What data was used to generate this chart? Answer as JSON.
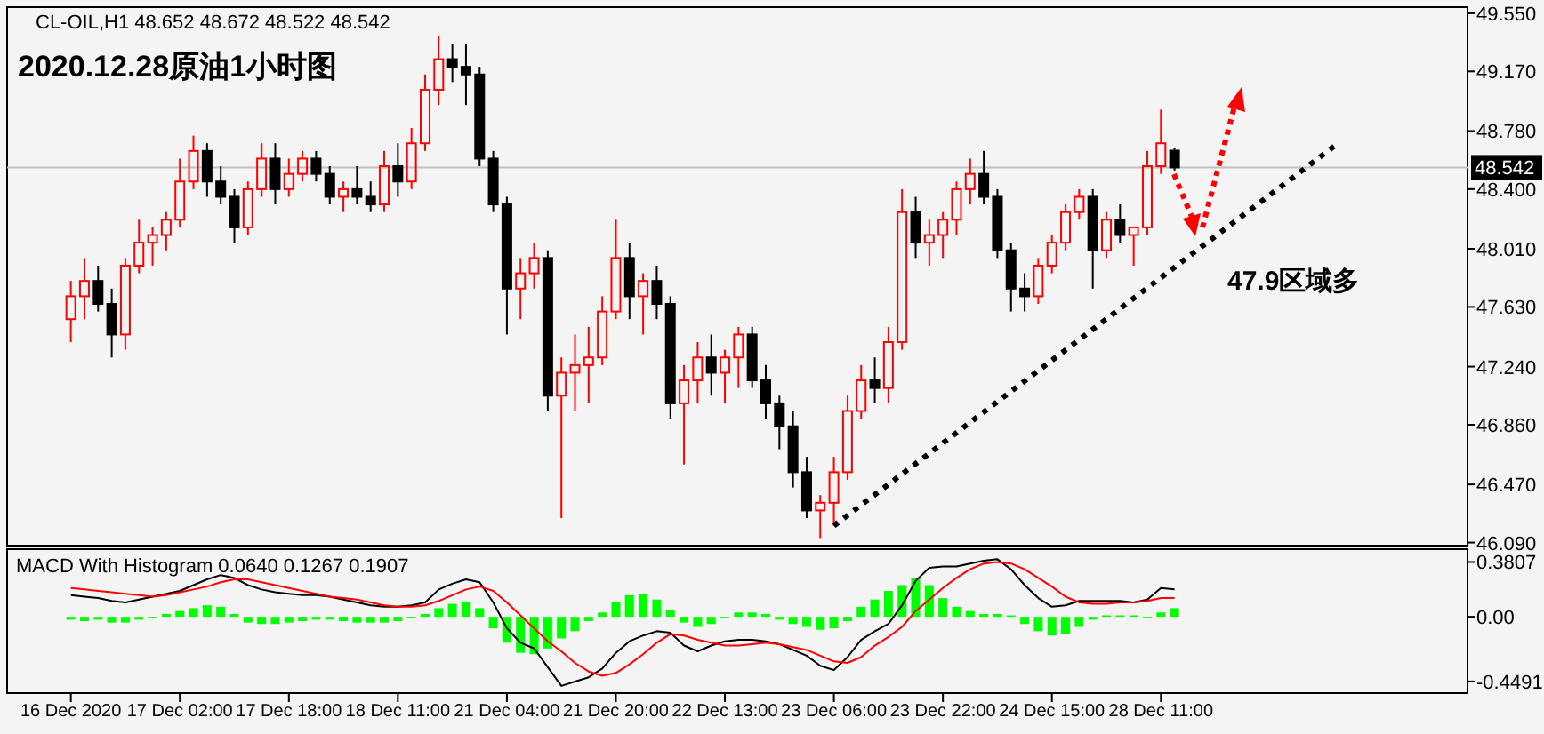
{
  "chart_data": [
    {
      "type": "candlestick",
      "title": "2020.12.28原油1小时图",
      "subtitle": "CL-OIL,H1  48.652 48.672 48.522 48.542",
      "annotations": [
        "47.9区域多"
      ],
      "tick_labels": "y",
      "ohlc": [
        [
          47.55,
          47.8,
          47.4,
          47.7
        ],
        [
          47.7,
          47.95,
          47.55,
          47.8
        ],
        [
          47.8,
          47.9,
          47.6,
          47.65
        ],
        [
          47.65,
          47.75,
          47.3,
          47.45
        ],
        [
          47.45,
          47.95,
          47.35,
          47.9
        ],
        [
          47.9,
          48.2,
          47.85,
          48.05
        ],
        [
          48.05,
          48.15,
          47.9,
          48.1
        ],
        [
          48.1,
          48.25,
          48.0,
          48.2
        ],
        [
          48.2,
          48.6,
          48.15,
          48.45
        ],
        [
          48.45,
          48.75,
          48.4,
          48.65
        ],
        [
          48.65,
          48.7,
          48.35,
          48.45
        ],
        [
          48.45,
          48.55,
          48.3,
          48.35
        ],
        [
          48.35,
          48.4,
          48.05,
          48.15
        ],
        [
          48.15,
          48.45,
          48.1,
          48.4
        ],
        [
          48.4,
          48.7,
          48.35,
          48.6
        ],
        [
          48.6,
          48.7,
          48.3,
          48.4
        ],
        [
          48.4,
          48.6,
          48.35,
          48.5
        ],
        [
          48.5,
          48.65,
          48.45,
          48.6
        ],
        [
          48.6,
          48.65,
          48.45,
          48.5
        ],
        [
          48.5,
          48.55,
          48.3,
          48.35
        ],
        [
          48.35,
          48.45,
          48.25,
          48.4
        ],
        [
          48.4,
          48.55,
          48.3,
          48.35
        ],
        [
          48.35,
          48.45,
          48.25,
          48.3
        ],
        [
          48.3,
          48.65,
          48.25,
          48.55
        ],
        [
          48.55,
          48.7,
          48.35,
          48.45
        ],
        [
          48.45,
          48.8,
          48.4,
          48.7
        ],
        [
          48.7,
          49.15,
          48.65,
          49.05
        ],
        [
          49.05,
          49.4,
          48.95,
          49.25
        ],
        [
          49.25,
          49.35,
          49.1,
          49.2
        ],
        [
          49.2,
          49.35,
          48.95,
          49.15
        ],
        [
          49.15,
          49.2,
          48.55,
          48.6
        ],
        [
          48.6,
          48.65,
          48.25,
          48.3
        ],
        [
          48.3,
          48.35,
          47.45,
          47.75
        ],
        [
          47.75,
          47.95,
          47.55,
          47.85
        ],
        [
          47.85,
          48.05,
          47.75,
          47.95
        ],
        [
          47.95,
          48.0,
          46.95,
          47.05
        ],
        [
          47.05,
          47.3,
          46.25,
          47.2
        ],
        [
          47.2,
          47.45,
          46.95,
          47.25
        ],
        [
          47.25,
          47.5,
          47.0,
          47.3
        ],
        [
          47.3,
          47.7,
          47.25,
          47.6
        ],
        [
          47.6,
          48.2,
          47.55,
          47.95
        ],
        [
          47.95,
          48.05,
          47.55,
          47.7
        ],
        [
          47.7,
          47.85,
          47.45,
          47.8
        ],
        [
          47.8,
          47.9,
          47.55,
          47.65
        ],
        [
          47.65,
          47.7,
          46.9,
          47.0
        ],
        [
          47.0,
          47.25,
          46.6,
          47.15
        ],
        [
          47.15,
          47.4,
          47.0,
          47.3
        ],
        [
          47.3,
          47.45,
          47.05,
          47.2
        ],
        [
          47.2,
          47.35,
          47.0,
          47.3
        ],
        [
          47.3,
          47.5,
          47.1,
          47.45
        ],
        [
          47.45,
          47.5,
          47.1,
          47.15
        ],
        [
          47.15,
          47.25,
          46.9,
          47.0
        ],
        [
          47.0,
          47.05,
          46.7,
          46.85
        ],
        [
          46.85,
          46.95,
          46.45,
          46.55
        ],
        [
          46.55,
          46.65,
          46.25,
          46.3
        ],
        [
          46.3,
          46.4,
          46.12,
          46.35
        ],
        [
          46.35,
          46.65,
          46.2,
          46.55
        ],
        [
          46.55,
          47.05,
          46.5,
          46.95
        ],
        [
          46.95,
          47.25,
          46.9,
          47.15
        ],
        [
          47.15,
          47.3,
          47.0,
          47.1
        ],
        [
          47.1,
          47.5,
          47.0,
          47.4
        ],
        [
          47.4,
          48.4,
          47.35,
          48.25
        ],
        [
          48.25,
          48.35,
          47.95,
          48.05
        ],
        [
          48.05,
          48.2,
          47.9,
          48.1
        ],
        [
          48.1,
          48.25,
          47.95,
          48.2
        ],
        [
          48.2,
          48.45,
          48.1,
          48.4
        ],
        [
          48.4,
          48.6,
          48.3,
          48.5
        ],
        [
          48.5,
          48.65,
          48.3,
          48.35
        ],
        [
          48.35,
          48.4,
          47.95,
          48.0
        ],
        [
          48.0,
          48.05,
          47.6,
          47.75
        ],
        [
          47.75,
          47.85,
          47.6,
          47.7
        ],
        [
          47.7,
          47.95,
          47.65,
          47.9
        ],
        [
          47.9,
          48.1,
          47.85,
          48.05
        ],
        [
          48.05,
          48.3,
          48.0,
          48.25
        ],
        [
          48.25,
          48.4,
          48.2,
          48.35
        ],
        [
          48.35,
          48.4,
          47.75,
          48.0
        ],
        [
          48.0,
          48.25,
          47.95,
          48.2
        ],
        [
          48.2,
          48.3,
          48.05,
          48.1
        ],
        [
          48.1,
          48.15,
          47.9,
          48.15
        ],
        [
          48.15,
          48.65,
          48.1,
          48.55
        ],
        [
          48.55,
          48.92,
          48.5,
          48.7
        ],
        [
          48.652,
          48.672,
          48.522,
          48.542
        ],
        null,
        null,
        null,
        null,
        null,
        null,
        null,
        null,
        null,
        null,
        null,
        null,
        null,
        null,
        null,
        null,
        null,
        null,
        null,
        null,
        null
      ],
      "series": [
        {
          "type": "line",
          "color": "#000000",
          "line_style": "dotted",
          "values": [
            null,
            null,
            null,
            null,
            null,
            null,
            null,
            null,
            null,
            null,
            null,
            null,
            null,
            null,
            null,
            null,
            null,
            null,
            null,
            null,
            null,
            null,
            null,
            null,
            null,
            null,
            null,
            null,
            null,
            null,
            null,
            null,
            null,
            null,
            null,
            null,
            null,
            null,
            null,
            null,
            null,
            null,
            null,
            null,
            null,
            null,
            null,
            null,
            null,
            null,
            null,
            null,
            null,
            null,
            null,
            null,
            46.2,
            null,
            null,
            null,
            null,
            null,
            null,
            null,
            null,
            null,
            null,
            null,
            null,
            null,
            null,
            null,
            null,
            null,
            null,
            null,
            null,
            null,
            null,
            null,
            null,
            null,
            null,
            null,
            null,
            null,
            null,
            null,
            null,
            null,
            null,
            null,
            null,
            48.7,
            null,
            null,
            null,
            null,
            null,
            null,
            null,
            null,
            null
          ]
        }
      ],
      "ref_lines": [
        {
          "axis": "y",
          "value": 48.542,
          "label": "48.542",
          "color": "#c0c0c0"
        }
      ],
      "ylim": [
        46.07,
        49.59
      ],
      "yticks": [
        {
          "value": 49.55,
          "label": "49.550"
        },
        {
          "value": 49.17,
          "label": "49.170"
        },
        {
          "value": 48.78,
          "label": "48.780"
        },
        {
          "value": 48.4,
          "label": "48.400"
        },
        {
          "value": 48.01,
          "label": "48.010"
        },
        {
          "value": 47.63,
          "label": "47.630"
        },
        {
          "value": 47.24,
          "label": "47.240"
        },
        {
          "value": 46.86,
          "label": "46.860"
        },
        {
          "value": 46.47,
          "label": "46.470"
        },
        {
          "value": 46.09,
          "label": "46.090"
        }
      ]
    },
    {
      "type": "bar",
      "title": "MACD With Histogram 0.0640 0.1267 0.1907",
      "categories": [
        "16 Dec 2020",
        null,
        null,
        null,
        null,
        null,
        null,
        null,
        "17 Dec 02:00",
        null,
        null,
        null,
        null,
        null,
        null,
        null,
        "17 Dec 18:00",
        null,
        null,
        null,
        null,
        null,
        null,
        null,
        "18 Dec 11:00",
        null,
        null,
        null,
        null,
        null,
        null,
        null,
        "21 Dec 04:00",
        null,
        null,
        null,
        null,
        null,
        null,
        null,
        "21 Dec 20:00",
        null,
        null,
        null,
        null,
        null,
        null,
        null,
        "22 Dec 13:00",
        null,
        null,
        null,
        null,
        null,
        null,
        null,
        "23 Dec 06:00",
        null,
        null,
        null,
        null,
        null,
        null,
        null,
        "23 Dec 22:00",
        null,
        null,
        null,
        null,
        null,
        null,
        null,
        "24 Dec 15:00",
        null,
        null,
        null,
        null,
        null,
        null,
        null,
        "28 Dec 11:00",
        null,
        null,
        null,
        null,
        null,
        null,
        null,
        null,
        null,
        null,
        null,
        null,
        null,
        null,
        null,
        null,
        null,
        null,
        null,
        null,
        null,
        null
      ],
      "series": [
        {
          "type": "bar",
          "color": "#00ff00",
          "values": [
            -0.02,
            -0.03,
            -0.02,
            -0.04,
            -0.04,
            -0.02,
            0.0,
            0.02,
            0.04,
            0.06,
            0.08,
            0.07,
            0.02,
            -0.04,
            -0.05,
            -0.05,
            -0.04,
            -0.03,
            -0.02,
            -0.02,
            -0.03,
            -0.04,
            -0.04,
            -0.04,
            -0.03,
            -0.01,
            0.02,
            0.06,
            0.09,
            0.1,
            0.06,
            -0.08,
            -0.18,
            -0.25,
            -0.26,
            -0.22,
            -0.15,
            -0.1,
            -0.03,
            0.03,
            0.1,
            0.15,
            0.16,
            0.12,
            0.05,
            -0.04,
            -0.07,
            -0.05,
            0.0,
            0.03,
            0.03,
            0.02,
            -0.02,
            -0.05,
            -0.07,
            -0.09,
            -0.08,
            -0.03,
            0.07,
            0.12,
            0.18,
            0.22,
            0.27,
            0.22,
            0.13,
            0.07,
            0.04,
            0.02,
            0.02,
            0.01,
            -0.05,
            -0.1,
            -0.13,
            -0.12,
            -0.07,
            -0.02,
            0.01,
            0.01,
            0.01,
            -0.01,
            0.03,
            0.06,
            null,
            null,
            null,
            null,
            null,
            null,
            null,
            null,
            null,
            null,
            null,
            null,
            null,
            null,
            null,
            null,
            null,
            null,
            null,
            null,
            null
          ]
        },
        {
          "type": "line",
          "color": "#000000",
          "values": [
            0.15,
            0.14,
            0.13,
            0.11,
            0.1,
            0.12,
            0.14,
            0.16,
            0.18,
            0.22,
            0.26,
            0.29,
            0.27,
            0.22,
            0.19,
            0.17,
            0.16,
            0.15,
            0.15,
            0.14,
            0.12,
            0.1,
            0.08,
            0.07,
            0.07,
            0.08,
            0.1,
            0.19,
            0.23,
            0.26,
            0.24,
            0.1,
            -0.08,
            -0.18,
            -0.22,
            -0.35,
            -0.48,
            -0.45,
            -0.42,
            -0.36,
            -0.25,
            -0.17,
            -0.13,
            -0.1,
            -0.11,
            -0.2,
            -0.24,
            -0.2,
            -0.17,
            -0.16,
            -0.16,
            -0.17,
            -0.19,
            -0.23,
            -0.27,
            -0.34,
            -0.37,
            -0.28,
            -0.16,
            -0.1,
            -0.05,
            0.08,
            0.25,
            0.34,
            0.35,
            0.35,
            0.37,
            0.39,
            0.4,
            0.33,
            0.22,
            0.13,
            0.07,
            0.08,
            0.11,
            0.11,
            0.11,
            0.11,
            0.1,
            0.12,
            0.2,
            0.19,
            null,
            null,
            null,
            null,
            null,
            null,
            null,
            null,
            null,
            null,
            null,
            null,
            null,
            null,
            null,
            null,
            null,
            null,
            null,
            null,
            null
          ]
        },
        {
          "type": "line",
          "color": "#ff0000",
          "values": [
            0.2,
            0.19,
            0.18,
            0.17,
            0.16,
            0.15,
            0.14,
            0.15,
            0.17,
            0.19,
            0.21,
            0.24,
            0.26,
            0.26,
            0.24,
            0.22,
            0.2,
            0.18,
            0.16,
            0.14,
            0.13,
            0.12,
            0.1,
            0.08,
            0.07,
            0.07,
            0.08,
            0.11,
            0.15,
            0.19,
            0.21,
            0.18,
            0.1,
            0.01,
            -0.08,
            -0.17,
            -0.24,
            -0.32,
            -0.38,
            -0.41,
            -0.39,
            -0.33,
            -0.26,
            -0.18,
            -0.12,
            -0.13,
            -0.16,
            -0.18,
            -0.2,
            -0.2,
            -0.19,
            -0.18,
            -0.19,
            -0.21,
            -0.23,
            -0.27,
            -0.31,
            -0.32,
            -0.28,
            -0.2,
            -0.14,
            -0.07,
            0.04,
            0.12,
            0.2,
            0.27,
            0.33,
            0.37,
            0.38,
            0.37,
            0.33,
            0.27,
            0.21,
            0.14,
            0.1,
            0.09,
            0.09,
            0.1,
            0.1,
            0.11,
            0.13,
            0.13,
            null,
            null,
            null,
            null,
            null,
            null,
            null,
            null,
            null,
            null,
            null,
            null,
            null,
            null,
            null,
            null,
            null,
            null,
            null,
            null,
            null
          ]
        }
      ],
      "ylim": [
        -0.53,
        0.47
      ],
      "yticks": [
        0.3807,
        {
          "value": 0,
          "label": "0.00"
        },
        -0.4491
      ]
    }
  ]
}
